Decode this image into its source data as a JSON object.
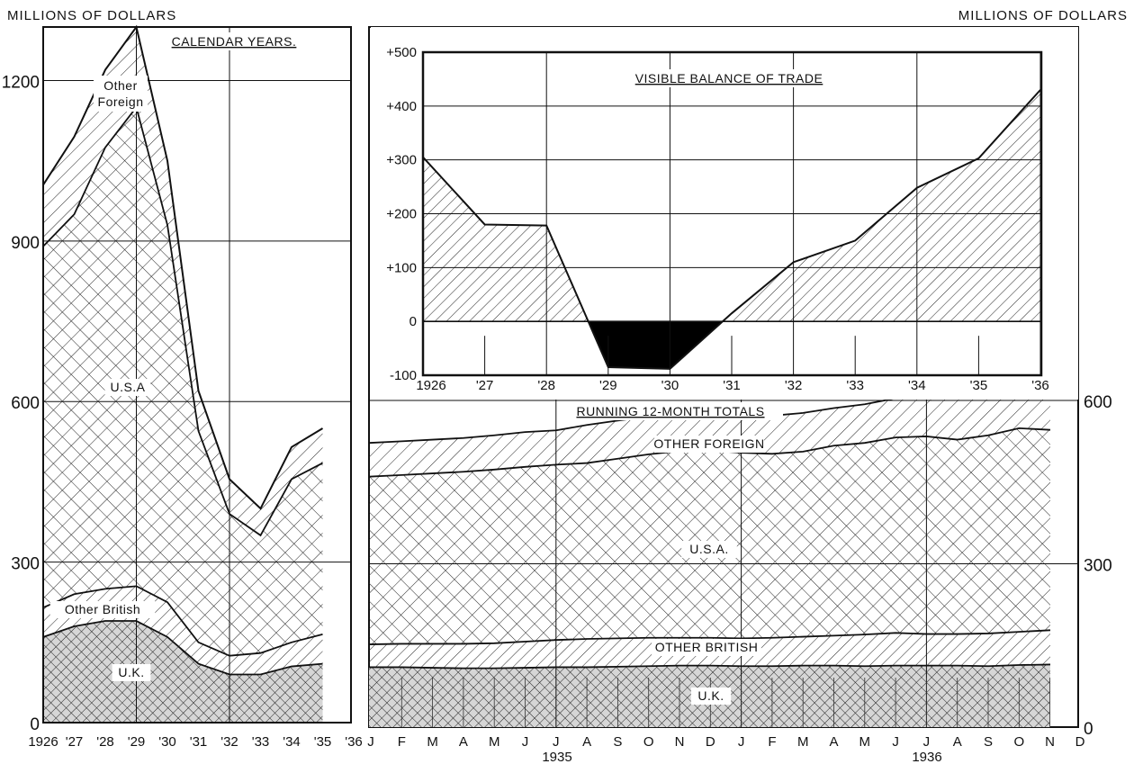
{
  "header": {
    "left_unit": "MILLIONS OF DOLLARS",
    "right_unit": "MILLIONS OF DOLLARS"
  },
  "colors": {
    "ink": "#111111",
    "paper": "#ffffff",
    "uk_fill": "#cfcfcf",
    "deficit_fill": "#000000"
  },
  "chart_data": [
    {
      "type": "area",
      "stacked": true,
      "title": "CALENDAR YEARS.",
      "x": [
        "1926",
        "'27",
        "'28",
        "'29",
        "'30",
        "'31",
        "'32",
        "'33",
        "'34",
        "'35"
      ],
      "x_tick_labels": [
        "1926",
        "'27",
        "'28",
        "'29",
        "'30",
        "'31",
        "'32",
        "'33",
        "'34",
        "'35",
        "'36"
      ],
      "ylim": [
        0,
        1300
      ],
      "y_ticks": [
        0,
        300,
        600,
        900,
        1200
      ],
      "grid": true,
      "series": [
        {
          "name": "U.K.",
          "values": [
            160,
            180,
            190,
            190,
            160,
            110,
            90,
            90,
            105,
            110
          ]
        },
        {
          "name": "Other British",
          "values": [
            55,
            60,
            60,
            65,
            65,
            40,
            35,
            40,
            45,
            55
          ]
        },
        {
          "name": "U.S.A",
          "values": [
            675,
            710,
            825,
            895,
            705,
            395,
            265,
            220,
            305,
            320
          ]
        },
        {
          "name": "Other Foreign",
          "values": [
            115,
            145,
            145,
            150,
            120,
            75,
            65,
            50,
            60,
            65
          ]
        }
      ]
    },
    {
      "type": "area",
      "title": "VISIBLE BALANCE OF TRADE",
      "x": [
        "1926",
        "'27",
        "'28",
        "'29",
        "'30",
        "'31",
        "'32",
        "'33",
        "'34",
        "'35",
        "'36"
      ],
      "x_tick_labels": [
        "1926",
        "'27",
        "'28",
        "'29",
        "'30",
        "'31",
        "'32",
        "'33",
        "'34",
        "'35",
        "'36"
      ],
      "ylim": [
        -100,
        500
      ],
      "y_ticks": [
        -100,
        0,
        100,
        200,
        300,
        400,
        500
      ],
      "y_tick_labels": [
        "-100",
        "0",
        "+100",
        "+200",
        "+300",
        "+400",
        "+500"
      ],
      "grid": true,
      "series": [
        {
          "name": "Visible balance",
          "values": [
            305,
            180,
            178,
            -85,
            -88,
            15,
            110,
            150,
            248,
            303,
            430
          ]
        }
      ]
    },
    {
      "type": "area",
      "stacked": true,
      "title": "RUNNING 12-MONTH TOTALS",
      "x": [
        "J",
        "F",
        "M",
        "A",
        "M",
        "J",
        "J",
        "A",
        "S",
        "O",
        "N",
        "D",
        "J",
        "F",
        "M",
        "A",
        "M",
        "J",
        "J",
        "A",
        "S",
        "O",
        "N"
      ],
      "x_tick_labels": [
        "J",
        "F",
        "M",
        "A",
        "M",
        "J",
        "J",
        "A",
        "S",
        "O",
        "N",
        "D",
        "J",
        "F",
        "M",
        "A",
        "M",
        "J",
        "J",
        "A",
        "S",
        "O",
        "N",
        "D"
      ],
      "year_labels": [
        "1935",
        "1936"
      ],
      "ylim": [
        0,
        620
      ],
      "y_ticks": [
        0,
        300,
        600
      ],
      "grid": true,
      "series": [
        {
          "name": "U.K.",
          "values": [
            110,
            110,
            109,
            108,
            108,
            109,
            110,
            110,
            111,
            112,
            113,
            113,
            112,
            112,
            113,
            113,
            112,
            113,
            113,
            113,
            112,
            114,
            115
          ]
        },
        {
          "name": "OTHER BRITISH",
          "values": [
            42,
            43,
            44,
            45,
            46,
            48,
            50,
            52,
            52,
            52,
            51,
            51,
            51,
            52,
            53,
            55,
            58,
            60,
            58,
            58,
            60,
            61,
            63
          ]
        },
        {
          "name": "U.S.A.",
          "values": [
            308,
            310,
            313,
            316,
            319,
            321,
            322,
            323,
            330,
            337,
            343,
            344,
            341,
            338,
            340,
            349,
            352,
            359,
            363,
            357,
            364,
            374,
            368
          ]
        },
        {
          "name": "OTHER FOREIGN",
          "values": [
            62,
            62,
            62,
            62,
            63,
            64,
            63,
            70,
            70,
            69,
            69,
            68,
            68,
            70,
            71,
            69,
            71,
            72,
            73,
            84,
            82,
            81,
            76
          ]
        }
      ]
    }
  ]
}
